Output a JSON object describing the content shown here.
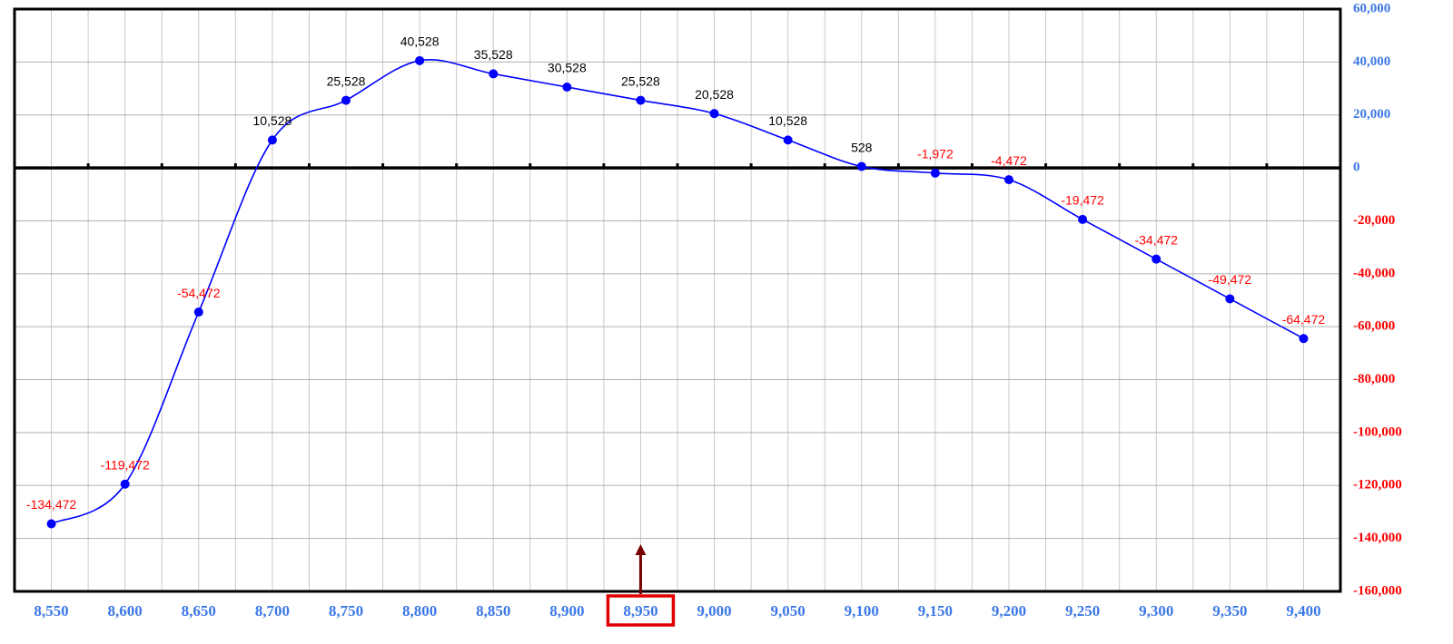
{
  "chart_data": {
    "type": "line",
    "categories": [
      "8,550",
      "8,600",
      "8,650",
      "8,700",
      "8,750",
      "8,800",
      "8,850",
      "8,900",
      "8,950",
      "9,000",
      "9,050",
      "9,100",
      "9,150",
      "9,200",
      "9,250",
      "9,300",
      "9,350",
      "9,400"
    ],
    "series": [
      {
        "color": "#0000ff",
        "values": [
          -134472,
          -119472,
          -54472,
          10528,
          25528,
          40528,
          35528,
          30528,
          25528,
          20528,
          10528,
          528,
          -1972,
          -4472,
          -19472,
          -34472,
          -49472,
          -64472
        ],
        "value_labels": [
          "-134,472",
          "-119,472",
          "-54,472",
          "10,528",
          "25,528",
          "40,528",
          "35,528",
          "30,528",
          "25,528",
          "20,528",
          "10,528",
          "528",
          "-1,972",
          "-4,472",
          "-19,472",
          "-34,472",
          "-49,472",
          "-64,472"
        ]
      }
    ],
    "ylim": [
      -160000,
      60000
    ],
    "yticks": [
      {
        "value": -160000,
        "label": "-160,000"
      },
      {
        "value": -140000,
        "label": "-140,000"
      },
      {
        "value": -120000,
        "label": "-120,000"
      },
      {
        "value": -100000,
        "label": "-100,000"
      },
      {
        "value": -80000,
        "label": "-80,000"
      },
      {
        "value": -60000,
        "label": "-60,000"
      },
      {
        "value": -40000,
        "label": "-40,000"
      },
      {
        "value": -20000,
        "label": "-20,000"
      },
      0,
      {
        "value": 20000,
        "label": "20,000"
      },
      {
        "value": 40000,
        "label": "40,000"
      },
      {
        "value": 60000,
        "label": "60,000"
      }
    ],
    "y_axis_side": "right",
    "grid": true,
    "smooth": true,
    "positive_color": "#000000",
    "negative_color": "#ff0000",
    "positive_tick_color": "#3c78e6",
    "highlight_category": "8,950"
  }
}
